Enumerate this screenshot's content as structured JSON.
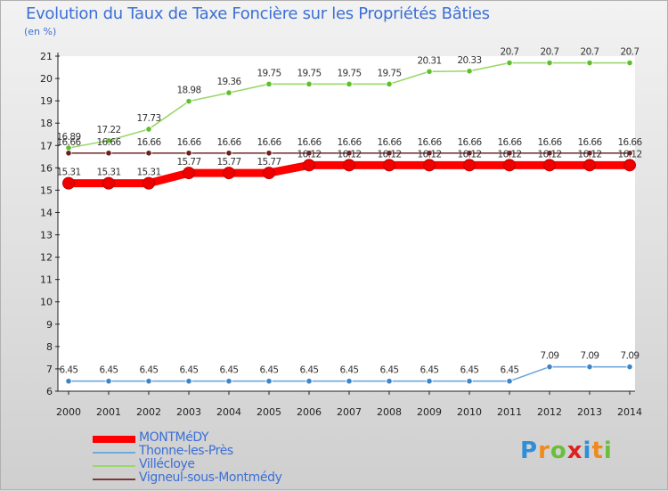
{
  "title": "Evolution du Taux de Taxe Foncière sur les Propriétés Bâties",
  "unit": "(en %)",
  "logo": {
    "text": "Proxiti",
    "letters": [
      "P",
      "r",
      "o",
      "x",
      "i",
      "t",
      "i"
    ],
    "letter_colors": [
      "#2e8fd8",
      "#f08a1a",
      "#6abf3a",
      "#e02020",
      "#2e8fd8",
      "#f08a1a",
      "#6abf3a"
    ]
  },
  "chart_data": {
    "type": "line",
    "title": "Evolution du Taux de Taxe Foncière sur les Propriétés Bâties",
    "ylabel": "(en %)",
    "xlabel": "",
    "x": [
      "2000",
      "2001",
      "2002",
      "2003",
      "2004",
      "2005",
      "2006",
      "2007",
      "2008",
      "2009",
      "2010",
      "2011",
      "2012",
      "2013",
      "2014"
    ],
    "ylim": [
      6,
      21
    ],
    "yticks": [
      "6",
      "7",
      "8",
      "9",
      "10",
      "11",
      "12",
      "13",
      "14",
      "15",
      "16",
      "17",
      "18",
      "19",
      "20",
      "21"
    ],
    "grid": false,
    "legend_position": "bottom-left",
    "series": [
      {
        "name": "Villécloye",
        "color": "#99d86a",
        "marker": "#5fbf2a",
        "values": [
          16.89,
          17.22,
          17.73,
          18.98,
          19.36,
          19.75,
          19.75,
          19.75,
          19.75,
          20.31,
          20.33,
          20.7,
          20.7,
          20.7,
          20.7
        ],
        "labels": [
          "16.89",
          "17.22",
          "17.73",
          "18.98",
          "19.36",
          "19.75",
          "19.75",
          "19.75",
          "19.75",
          "20.31",
          "20.33",
          "20.7",
          "20.7",
          "20.7",
          "20.7"
        ]
      },
      {
        "name": "Vigneul-sous-Montmédy",
        "color": "#7a3a3a",
        "marker": "#6b1f1f",
        "values": [
          16.66,
          16.66,
          16.66,
          16.66,
          16.66,
          16.66,
          16.66,
          16.66,
          16.66,
          16.66,
          16.66,
          16.66,
          16.66,
          16.66,
          16.66
        ],
        "labels": [
          "16.66",
          "16.66",
          "16.66",
          "16.66",
          "16.66",
          "16.66",
          "16.66",
          "16.66",
          "16.66",
          "16.66",
          "16.66",
          "16.66",
          "16.66",
          "16.66",
          "16.66"
        ]
      },
      {
        "name": "MONTMéDY",
        "color": "#ff0000",
        "marker": "#ee0000",
        "values": [
          15.31,
          15.31,
          15.31,
          15.77,
          15.77,
          15.77,
          16.12,
          16.12,
          16.12,
          16.12,
          16.12,
          16.12,
          16.12,
          16.12,
          16.12
        ],
        "labels": [
          "15.31",
          "15.31",
          "15.31",
          "15.77",
          "15.77",
          "15.77",
          "16.12",
          "16.12",
          "16.12",
          "16.12",
          "16.12",
          "16.12",
          "16.12",
          "16.12",
          "16.12"
        ]
      },
      {
        "name": "Thonne-les-Près",
        "color": "#6fa8dc",
        "marker": "#3d85c6",
        "values": [
          6.45,
          6.45,
          6.45,
          6.45,
          6.45,
          6.45,
          6.45,
          6.45,
          6.45,
          6.45,
          6.45,
          6.45,
          7.09,
          7.09,
          7.09
        ],
        "labels": [
          "6.45",
          "6.45",
          "6.45",
          "6.45",
          "6.45",
          "6.45",
          "6.45",
          "6.45",
          "6.45",
          "6.45",
          "6.45",
          "6.45",
          "7.09",
          "7.09",
          "7.09"
        ]
      }
    ],
    "legend": [
      {
        "name": "MONTMéDY",
        "color": "#ff0000"
      },
      {
        "name": "Thonne-les-Près",
        "color": "#6fa8dc"
      },
      {
        "name": "Villécloye",
        "color": "#99d86a"
      },
      {
        "name": "Vigneul-sous-Montmédy",
        "color": "#7a3a3a"
      }
    ]
  }
}
